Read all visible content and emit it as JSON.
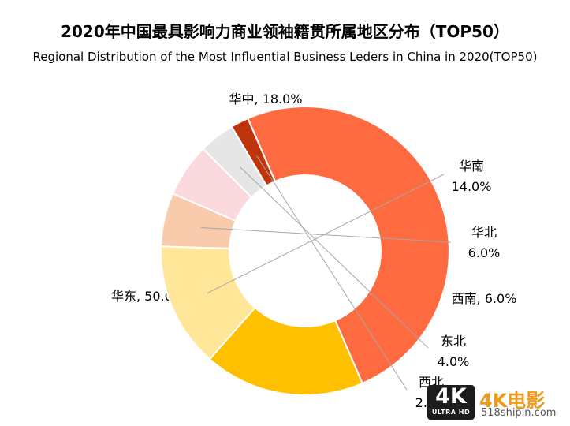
{
  "chart_data": {
    "type": "pie",
    "title": "2020年中国最具影响力商业领袖籍贯所属地区分布（TOP50）",
    "subtitle": "Regional Distribution of the Most Influential Business Leders in China in 2020(TOP50)",
    "slices": [
      {
        "label": "华东",
        "value": 50.0,
        "display": "50.0%",
        "color": "#FF6B40"
      },
      {
        "label": "华中",
        "value": 18.0,
        "display": "18.0%",
        "color": "#FFC000"
      },
      {
        "label": "华南",
        "value": 14.0,
        "display": "14.0%",
        "color": "#FFE699"
      },
      {
        "label": "华北",
        "value": 6.0,
        "display": "6.0%",
        "color": "#F8CBAD"
      },
      {
        "label": "西南",
        "value": 6.0,
        "display": "6.0%",
        "color": "#FADADD"
      },
      {
        "label": "东北",
        "value": 4.0,
        "display": "4.0%",
        "color": "#E6E6E6"
      },
      {
        "label": "西北",
        "value": 2.0,
        "display": "2.0%",
        "color": "#C0340C"
      }
    ],
    "donut": true,
    "legend": "none"
  },
  "watermark": {
    "badge_main": "4K",
    "badge_sub": "ULTRA HD",
    "brand": "4K电影",
    "site": "518shipin.com"
  }
}
